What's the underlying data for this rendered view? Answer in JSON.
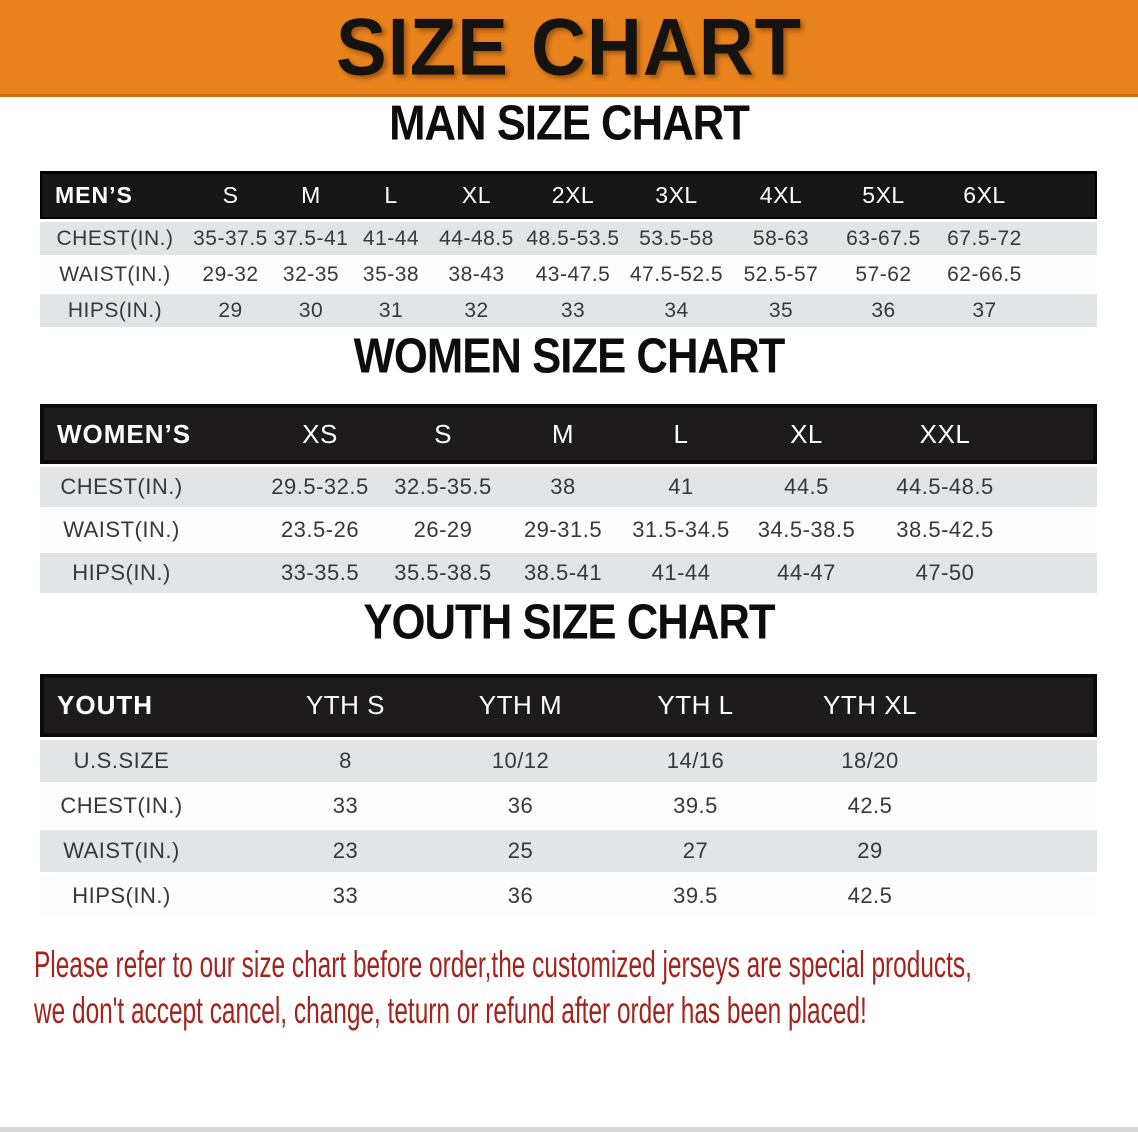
{
  "banner": {
    "title": "SIZE CHART",
    "bg_color": "#E8821C"
  },
  "tables": [
    {
      "id": "mens",
      "heading": "MAN SIZE CHART",
      "header_label": "MEN’S",
      "columns": [
        "S",
        "M",
        "L",
        "XL",
        "2XL",
        "3XL",
        "4XL",
        "5XL",
        "6XL"
      ],
      "rows": [
        {
          "label": "CHEST(IN.)",
          "values": [
            "35-37.5",
            "37.5-41",
            "41-44",
            "44-48.5",
            "48.5-53.5",
            "53.5-58",
            "58-63",
            "63-67.5",
            "67.5-72"
          ]
        },
        {
          "label": "WAIST(IN.)",
          "values": [
            "29-32",
            "32-35",
            "35-38",
            "38-43",
            "43-47.5",
            "47.5-52.5",
            "52.5-57",
            "57-62",
            "62-66.5"
          ]
        },
        {
          "label": "HIPS(IN.)",
          "values": [
            "29",
            "30",
            "31",
            "32",
            "33",
            "34",
            "35",
            "36",
            "37"
          ]
        }
      ]
    },
    {
      "id": "womens",
      "heading": "WOMEN SIZE CHART",
      "header_label": "WOMEN’S",
      "columns": [
        "XS",
        "S",
        "M",
        "L",
        "XL",
        "XXL"
      ],
      "rows": [
        {
          "label": "CHEST(IN.)",
          "values": [
            "29.5-32.5",
            "32.5-35.5",
            "38",
            "41",
            "44.5",
            "44.5-48.5"
          ]
        },
        {
          "label": "WAIST(IN.)",
          "values": [
            "23.5-26",
            "26-29",
            "29-31.5",
            "31.5-34.5",
            "34.5-38.5",
            "38.5-42.5"
          ]
        },
        {
          "label": "HIPS(IN.)",
          "values": [
            "33-35.5",
            "35.5-38.5",
            "38.5-41",
            "41-44",
            "44-47",
            "47-50"
          ]
        }
      ]
    },
    {
      "id": "youth",
      "heading": "YOUTH SIZE CHART",
      "header_label": "YOUTH",
      "columns": [
        "YTH S",
        "YTH M",
        "YTH L",
        "YTH XL"
      ],
      "rows": [
        {
          "label": "U.S.SIZE",
          "values": [
            "8",
            "10/12",
            "14/16",
            "18/20"
          ]
        },
        {
          "label": "CHEST(IN.)",
          "values": [
            "33",
            "36",
            "39.5",
            "42.5"
          ]
        },
        {
          "label": "WAIST(IN.)",
          "values": [
            "23",
            "25",
            "27",
            "29"
          ]
        },
        {
          "label": "HIPS(IN.)",
          "values": [
            "33",
            "36",
            "39.5",
            "42.5"
          ]
        }
      ]
    }
  ],
  "footer": {
    "line1": "Please refer to our size chart before order,the customized jerseys are special products,",
    "line2": "we don't accept cancel, change, teturn or refund after order has been placed!",
    "text_color": "#A1241E"
  }
}
